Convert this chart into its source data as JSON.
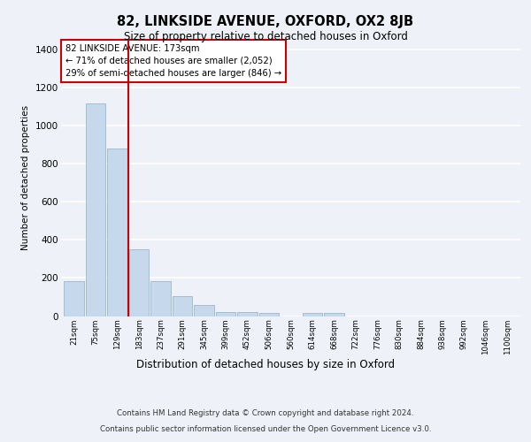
{
  "title": "82, LINKSIDE AVENUE, OXFORD, OX2 8JB",
  "subtitle": "Size of property relative to detached houses in Oxford",
  "xlabel": "Distribution of detached houses by size in Oxford",
  "ylabel": "Number of detached properties",
  "footer_line1": "Contains HM Land Registry data © Crown copyright and database right 2024.",
  "footer_line2": "Contains public sector information licensed under the Open Government Licence v3.0.",
  "annotation_line1": "82 LINKSIDE AVENUE: 173sqm",
  "annotation_line2": "← 71% of detached houses are smaller (2,052)",
  "annotation_line3": "29% of semi-detached houses are larger (846) →",
  "bar_color": "#c5d8ec",
  "bar_edge_color": "#8ab0cc",
  "redline_color": "#cc0000",
  "background_color": "#eef2f8",
  "grid_color": "#ffffff",
  "categories": [
    "21sqm",
    "75sqm",
    "129sqm",
    "183sqm",
    "237sqm",
    "291sqm",
    "345sqm",
    "399sqm",
    "452sqm",
    "506sqm",
    "560sqm",
    "614sqm",
    "668sqm",
    "722sqm",
    "776sqm",
    "830sqm",
    "884sqm",
    "938sqm",
    "992sqm",
    "1046sqm",
    "1100sqm"
  ],
  "values": [
    185,
    1115,
    880,
    350,
    185,
    105,
    58,
    22,
    20,
    14,
    0,
    14,
    14,
    0,
    0,
    0,
    0,
    0,
    0,
    0,
    0
  ],
  "redline_x": 2.5,
  "ylim": [
    0,
    1450
  ],
  "yticks": [
    0,
    200,
    400,
    600,
    800,
    1000,
    1200,
    1400
  ]
}
